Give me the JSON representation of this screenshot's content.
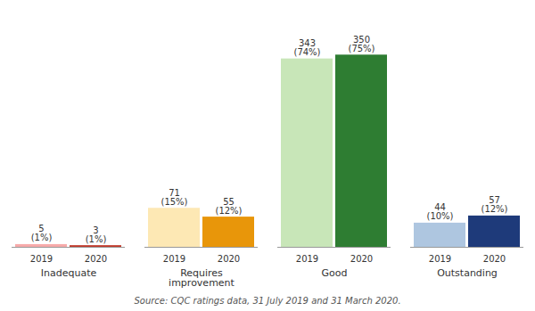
{
  "chart_data": {
    "type": "bar",
    "categories": [
      "Inadequate",
      "Requires\nimprovement",
      "Good",
      "Outstanding"
    ],
    "series": [
      {
        "name": "2019",
        "values": [
          5,
          71,
          343,
          44
        ],
        "percent_labels": [
          "(1%)",
          "(15%)",
          "(74%)",
          "(10%)"
        ],
        "colors": [
          "#f7aaaa",
          "#fde8b4",
          "#c8e6b8",
          "#aec6e0"
        ]
      },
      {
        "name": "2020",
        "values": [
          3,
          55,
          350,
          57
        ],
        "percent_labels": [
          "(1%)",
          "(12%)",
          "(75%)",
          "(12%)"
        ],
        "colors": [
          "#c0392b",
          "#e8960a",
          "#2e7d32",
          "#1e3a7a"
        ]
      }
    ],
    "caption": "Source: CQC ratings data, 31 July 2019 and 31 March 2020.",
    "ylim": [
      0,
      430
    ],
    "data_labels": true,
    "tick_labels": "x",
    "grid": false
  }
}
